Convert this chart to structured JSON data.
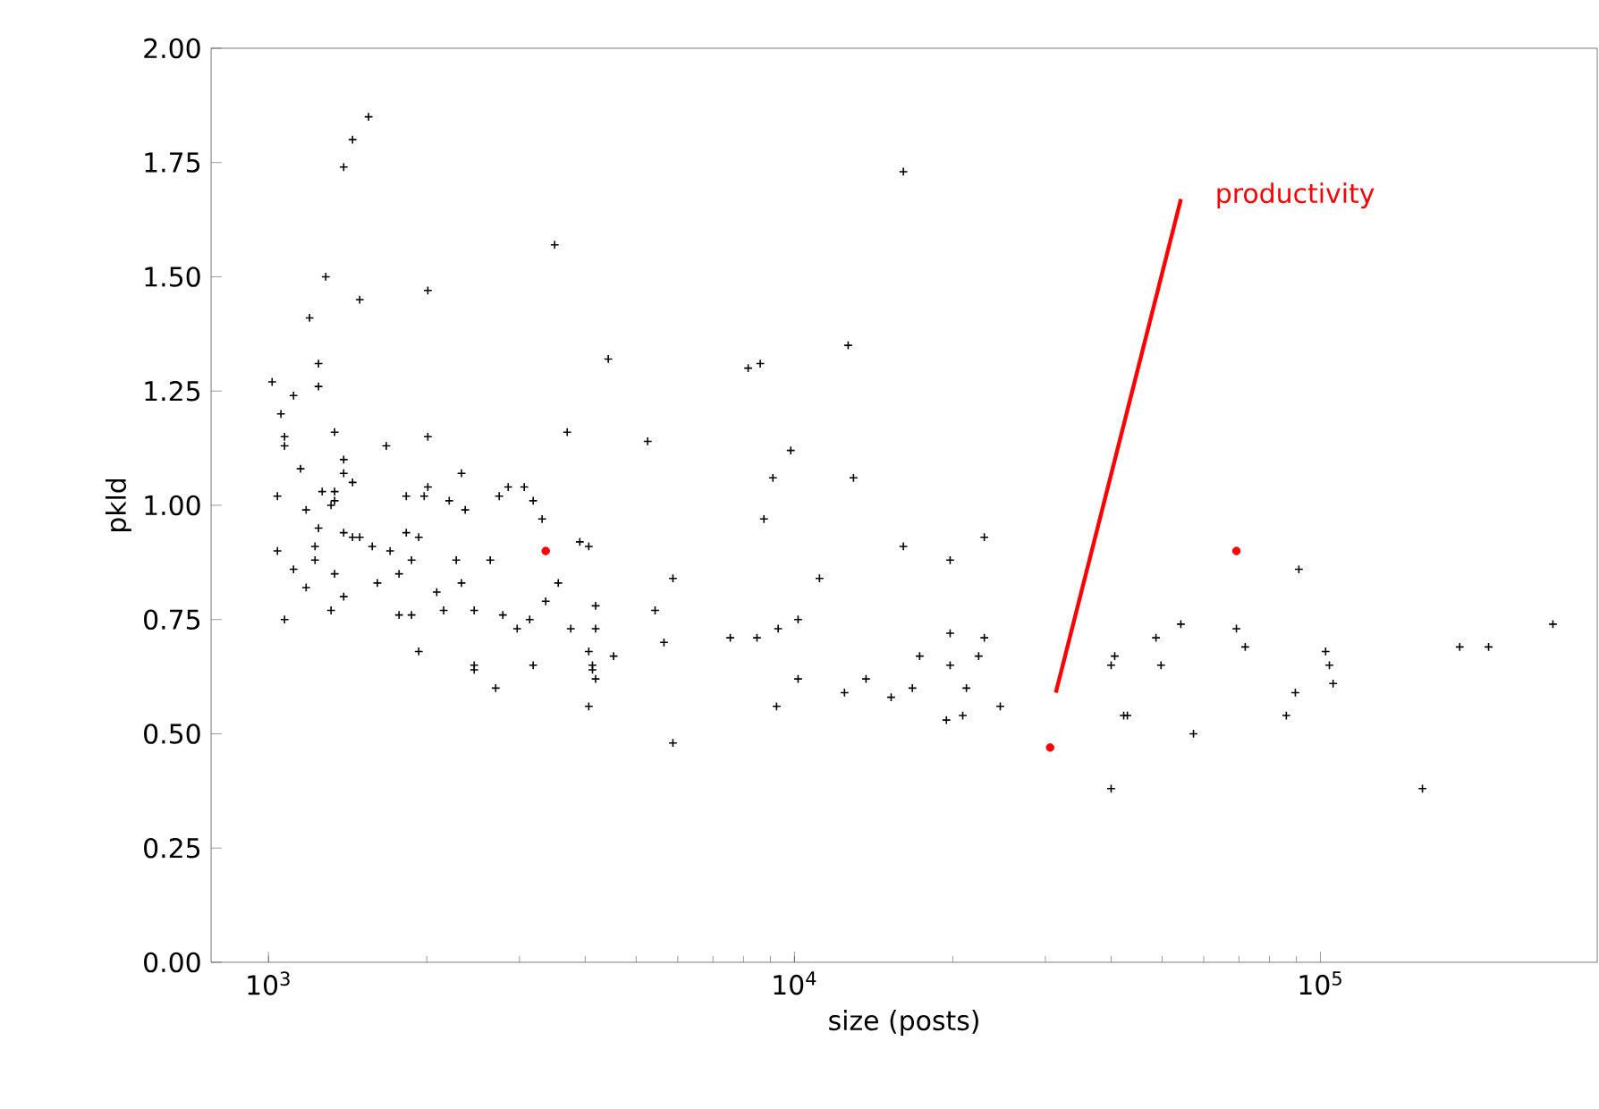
{
  "chart_data": {
    "type": "scatter",
    "xlabel": "size (posts)",
    "ylabel": "pkld",
    "log": "x",
    "xlim": [
      778,
      336000
    ],
    "xticks": [
      {
        "value": 1000,
        "label": "10$^{3}$"
      },
      {
        "value": 10000,
        "label": "10$^{4}$"
      },
      {
        "value": 100000,
        "label": "10$^{5}$"
      }
    ],
    "ylim": [
      0,
      2
    ],
    "yticks": [
      {
        "value": 0,
        "label": "0.00"
      },
      {
        "value": 0.25,
        "label": "0.25"
      },
      {
        "value": 0.5,
        "label": "0.50"
      },
      {
        "value": 0.75,
        "label": "0.75"
      },
      {
        "value": 1,
        "label": "1.00"
      },
      {
        "value": 1.25,
        "label": "1.25"
      },
      {
        "value": 1.5,
        "label": "1.50"
      },
      {
        "value": 1.75,
        "label": "1.75"
      },
      {
        "value": 2,
        "label": "2.00"
      }
    ],
    "grid": false,
    "series": [
      {
        "color": "#000000",
        "marker": "cross",
        "x": [
          1550,
          1445,
          1390,
          3501,
          4426,
          1285,
          2009,
          1491,
          1197,
          1245,
          1245,
          1016,
          1116,
          1056,
          1073,
          1073,
          1336,
          2009,
          1675,
          3698,
          5260,
          1151,
          1390,
          1390,
          1445,
          2328,
          1040,
          1265,
          1336,
          1336,
          1315,
          1828,
          2009,
          1977,
          2206,
          2366,
          2746,
          2856,
          3064,
          3186,
          3313,
          1179,
          1245,
          1390,
          1445,
          1491,
          1828,
          1931,
          1575,
          1703,
          1040,
          1226,
          1226,
          1116,
          1871,
          2275,
          2640,
          3908,
          4064,
          1336,
          1771,
          1611,
          2328,
          3556,
          1179,
          2089,
          1390,
          1315,
          2153,
          3366,
          4188,
          1771,
          1871,
          2461,
          2790,
          3138,
          1073,
          2970,
          3757,
          4188,
          5433,
          1931,
          4064,
          4531,
          2461,
          2461,
          3186,
          4130,
          4130,
          4188,
          2704,
          4064,
          16110,
          12650,
          8166,
          8610,
          9840,
          9100,
          12950,
          8750,
          16110,
          19770,
          22960,
          5874,
          11160,
          5649,
          7551,
          8487,
          9311,
          10160,
          19770,
          22960,
          17300,
          19770,
          22400,
          10160,
          12450,
          13680,
          15270,
          16760,
          21230,
          24620,
          19450,
          20890,
          9247,
          5874,
          40000,
          40000,
          42270,
          91000,
          40640,
          48680,
          54280,
          49770,
          69230,
          71950,
          102300,
          104000,
          105700,
          89600,
          86130,
          42950,
          57370,
          156300,
          184000,
          208800,
          276700
        ],
        "values": [
          1.85,
          1.8,
          1.74,
          1.57,
          1.32,
          1.5,
          1.47,
          1.45,
          1.41,
          1.31,
          1.26,
          1.27,
          1.24,
          1.2,
          1.15,
          1.13,
          1.16,
          1.15,
          1.13,
          1.16,
          1.14,
          1.08,
          1.1,
          1.07,
          1.05,
          1.07,
          1.02,
          1.03,
          1.03,
          1.01,
          1.0,
          1.02,
          1.04,
          1.02,
          1.01,
          0.99,
          1.02,
          1.04,
          1.04,
          1.01,
          0.97,
          0.99,
          0.95,
          0.94,
          0.93,
          0.93,
          0.94,
          0.93,
          0.91,
          0.9,
          0.9,
          0.91,
          0.88,
          0.86,
          0.88,
          0.88,
          0.88,
          0.92,
          0.91,
          0.85,
          0.85,
          0.83,
          0.83,
          0.83,
          0.82,
          0.81,
          0.8,
          0.77,
          0.77,
          0.79,
          0.78,
          0.76,
          0.76,
          0.77,
          0.76,
          0.75,
          0.75,
          0.73,
          0.73,
          0.73,
          0.77,
          0.68,
          0.68,
          0.67,
          0.65,
          0.64,
          0.65,
          0.65,
          0.64,
          0.62,
          0.6,
          0.56,
          1.73,
          1.35,
          1.3,
          1.31,
          1.12,
          1.06,
          1.06,
          0.97,
          0.91,
          0.88,
          0.93,
          0.84,
          0.84,
          0.7,
          0.71,
          0.71,
          0.73,
          0.75,
          0.72,
          0.71,
          0.67,
          0.65,
          0.67,
          0.62,
          0.59,
          0.62,
          0.58,
          0.6,
          0.6,
          0.56,
          0.53,
          0.54,
          0.56,
          0.48,
          0.38,
          0.65,
          0.54,
          0.86,
          0.67,
          0.71,
          0.74,
          0.65,
          0.73,
          0.69,
          0.68,
          0.65,
          0.61,
          0.59,
          0.54,
          0.54,
          0.5,
          0.38,
          0.69,
          0.69,
          0.74
        ]
      },
      {
        "color": "#ff0000",
        "marker": "circle",
        "x": [
          3366,
          30630,
          69230
        ],
        "values": [
          0.9,
          0.47,
          0.9
        ]
      },
      {
        "type": "line",
        "color": "#ff0000",
        "marker": "none",
        "x": [
          31400,
          54300
        ],
        "values": [
          0.59,
          1.67
        ]
      }
    ],
    "annotations": [
      "productivity"
    ]
  }
}
